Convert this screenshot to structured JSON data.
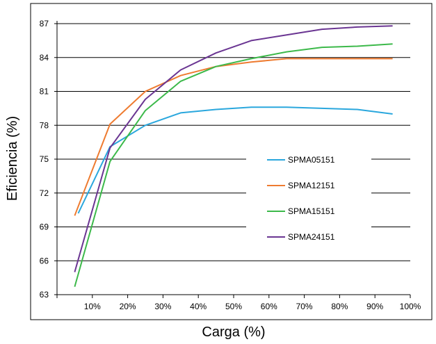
{
  "chart_data": {
    "type": "line",
    "title": "",
    "xlabel": "Carga (%)",
    "ylabel": "Eficiencia (%)",
    "xlim": [
      0,
      100
    ],
    "ylim": [
      63,
      87
    ],
    "x_ticks": [
      10,
      20,
      30,
      40,
      50,
      60,
      70,
      80,
      90,
      100
    ],
    "x_tick_labels": [
      "10%",
      "20%",
      "30%",
      "40%",
      "50%",
      "60%",
      "70%",
      "80%",
      "90%",
      "100%"
    ],
    "y_ticks": [
      63,
      66,
      69,
      72,
      75,
      78,
      81,
      84,
      87
    ],
    "y_tick_labels": [
      "63",
      "66",
      "69",
      "72",
      "75",
      "78",
      "81",
      "84",
      "87"
    ],
    "grid": "horizontal",
    "legend_position": "center-right",
    "series": [
      {
        "name": "SPMA05151",
        "color": "#2aa7dd",
        "points": [
          [
            6,
            70.2
          ],
          [
            15,
            76.1
          ],
          [
            25,
            78.0
          ],
          [
            35,
            79.1
          ],
          [
            45,
            79.4
          ],
          [
            55,
            79.6
          ],
          [
            65,
            79.6
          ],
          [
            75,
            79.5
          ],
          [
            85,
            79.4
          ],
          [
            95,
            79.0
          ]
        ]
      },
      {
        "name": "SPMA12151",
        "color": "#ee7b30",
        "points": [
          [
            5,
            70.0
          ],
          [
            15,
            78.1
          ],
          [
            25,
            81.0
          ],
          [
            35,
            82.4
          ],
          [
            45,
            83.2
          ],
          [
            55,
            83.6
          ],
          [
            65,
            83.9
          ],
          [
            75,
            83.9
          ],
          [
            85,
            83.9
          ],
          [
            95,
            83.9
          ]
        ]
      },
      {
        "name": "SPMA15151",
        "color": "#3cb94a",
        "points": [
          [
            5,
            63.7
          ],
          [
            15,
            74.8
          ],
          [
            25,
            79.3
          ],
          [
            35,
            81.9
          ],
          [
            45,
            83.2
          ],
          [
            55,
            83.9
          ],
          [
            65,
            84.5
          ],
          [
            75,
            84.9
          ],
          [
            85,
            85.0
          ],
          [
            95,
            85.2
          ]
        ]
      },
      {
        "name": "SPMA24151",
        "color": "#6a3592",
        "points": [
          [
            5,
            65.0
          ],
          [
            15,
            76.0
          ],
          [
            25,
            80.3
          ],
          [
            35,
            82.9
          ],
          [
            45,
            84.4
          ],
          [
            55,
            85.5
          ],
          [
            65,
            86.0
          ],
          [
            75,
            86.5
          ],
          [
            85,
            86.7
          ],
          [
            95,
            86.8
          ]
        ]
      }
    ]
  }
}
